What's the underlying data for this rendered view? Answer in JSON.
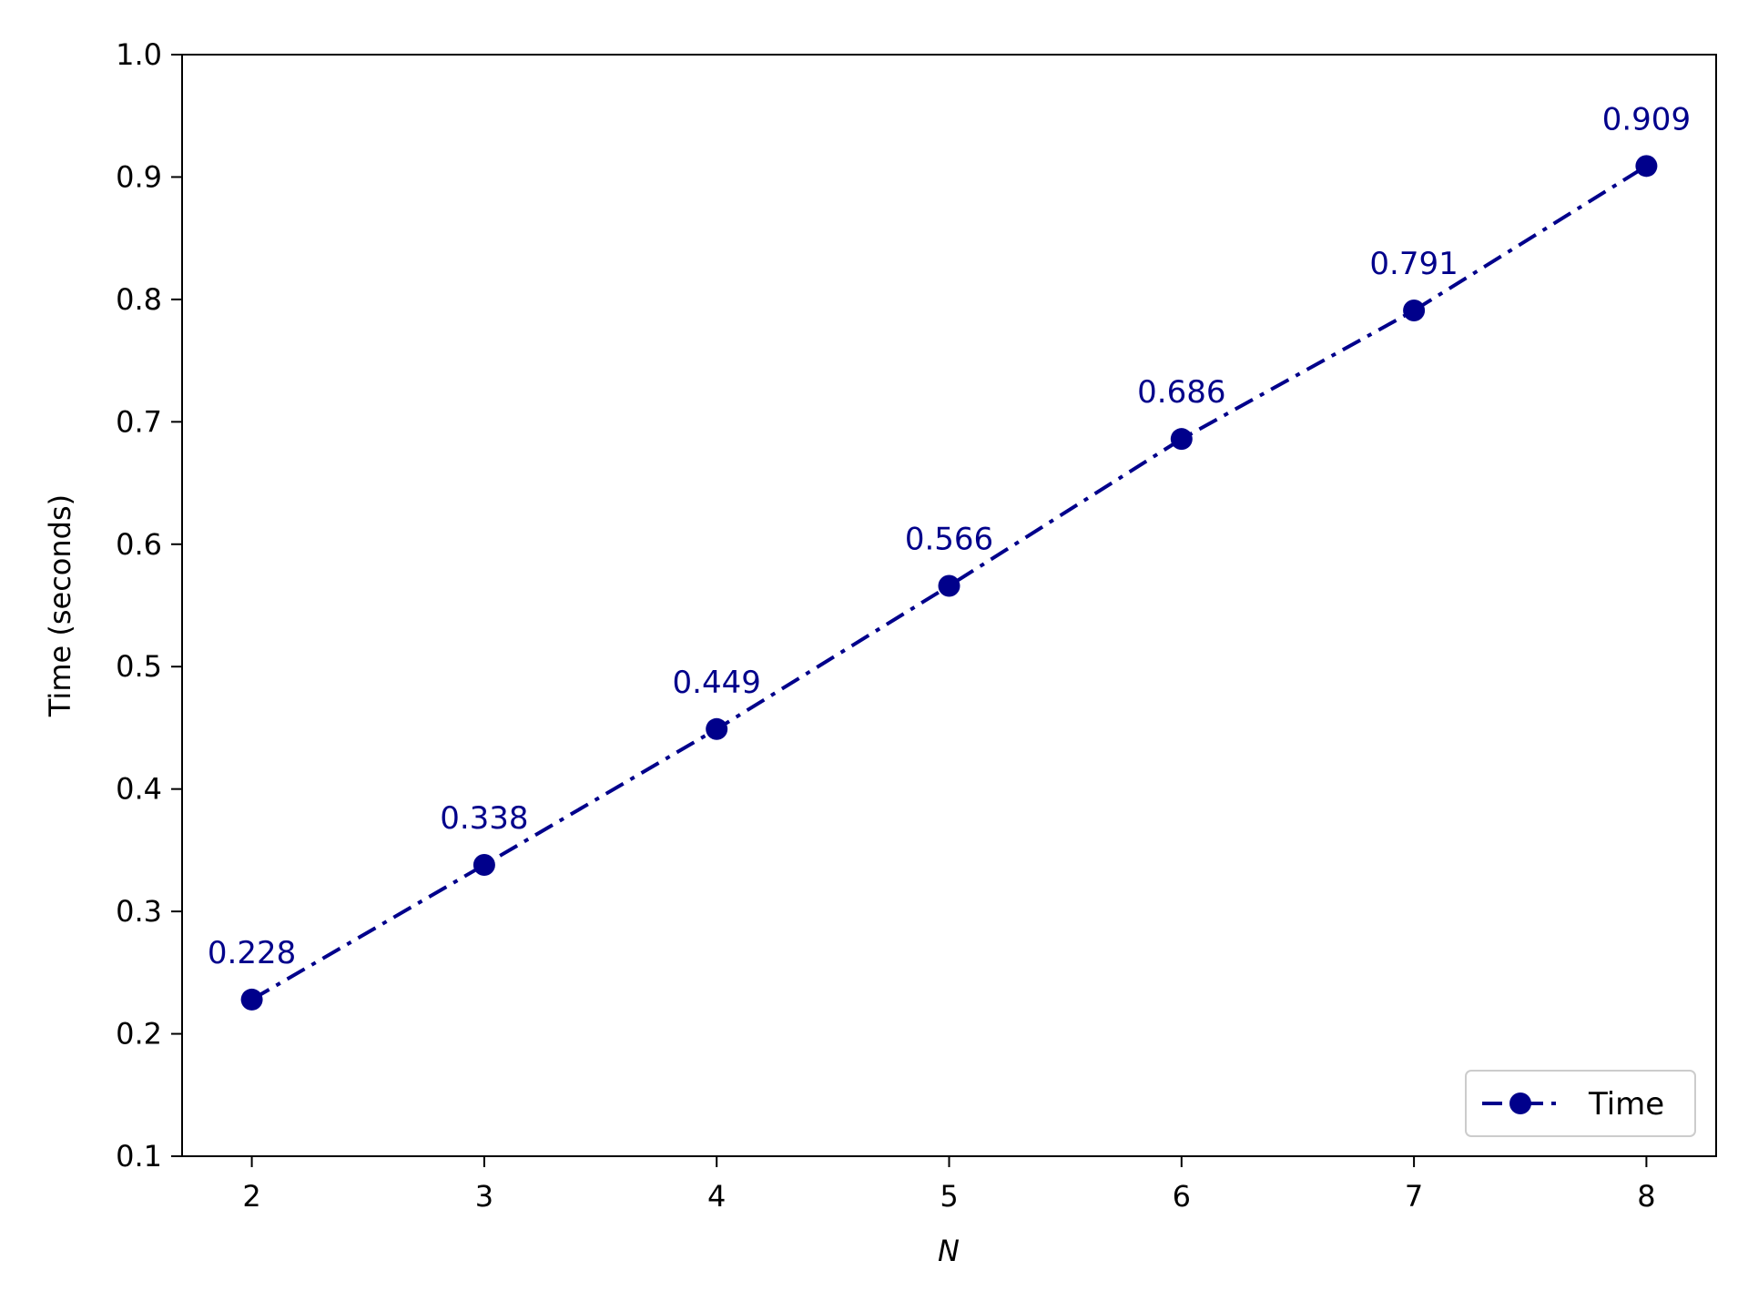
{
  "chart_data": {
    "type": "line",
    "title": "",
    "xlabel": "N",
    "ylabel": "Time (seconds)",
    "xlim": [
      1.7,
      8.3
    ],
    "ylim": [
      0.1,
      1.0
    ],
    "x_ticks": [
      "2",
      "3",
      "4",
      "5",
      "6",
      "7",
      "8"
    ],
    "y_ticks": [
      "0.1",
      "0.2",
      "0.3",
      "0.4",
      "0.5",
      "0.6",
      "0.7",
      "0.8",
      "0.9",
      "1.0"
    ],
    "grid": false,
    "legend_position": "lower-right",
    "x": [
      2,
      3,
      4,
      5,
      6,
      7,
      8
    ],
    "series": [
      {
        "name": "Time",
        "values": [
          0.228,
          0.338,
          0.449,
          0.566,
          0.686,
          0.791,
          0.909
        ],
        "data_labels": [
          "0.228",
          "0.338",
          "0.449",
          "0.566",
          "0.686",
          "0.791",
          "0.909"
        ],
        "color": "#00008b",
        "line_style": "dash-dot",
        "marker": "circle"
      }
    ]
  }
}
